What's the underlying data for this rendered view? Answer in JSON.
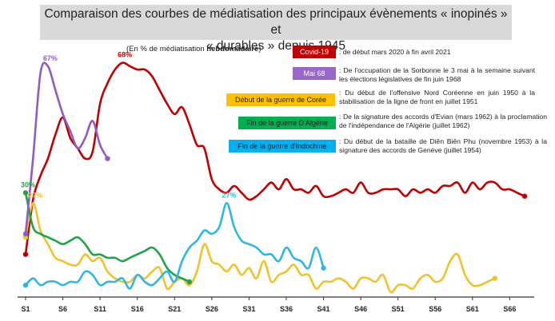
{
  "title_line1": "Comparaison des courbes de médiatisation des principaux évènements « inopinés » et",
  "title_line2": "« durables » depuis 1945",
  "subtitle_prefix": "(En % de médiatisation ",
  "subtitle_bold": "hebdomadaire",
  "subtitle_suffix": ")",
  "legend": [
    {
      "label": "Covid-19",
      "bg": "#c00000",
      "fg": "#ffffff",
      "color": "#c00000",
      "desc": ": de début mars 2020 à fin avril 2021"
    },
    {
      "label": "Mai 68",
      "bg": "#9966cc",
      "fg": "#ffffff",
      "color": "#8e5cc4",
      "desc": ": De l'occupation de la Sorbonne le 3 mai à la semaine suivant les élections législatives de fin juin 1968"
    },
    {
      "label": "Début de la guerre de Corée",
      "bg": "#ffc000",
      "fg": "#222222",
      "color": "#f2c12e",
      "desc": ": Du début de l'offensive Nord Coréenne en juin 1950 à la stabilisation de la ligne de front en juillet 1951"
    },
    {
      "label": "Fin de la guerre D'Algérie",
      "bg": "#00b050",
      "fg": "#222222",
      "color": "#21a34a",
      "desc": ": De la signature des accords d'Evian (mars 1962) à la proclamation de l'indépendance de l'Algérie (juillet 1962)"
    },
    {
      "label": "Fin de la guerre d'Indochine",
      "bg": "#00b0f0",
      "fg": "#222222",
      "color": "#2fb5e6",
      "desc": ": Du début de la bataille de Diên Biên Phu (novembre 1953) à la signature des accords de Genève (juillet 1954)"
    }
  ],
  "chart_data": {
    "type": "line",
    "title": "Comparaison des courbes de médiatisation des principaux évènements « inopinés » et « durables » depuis 1945",
    "subtitle": "(En % de médiatisation hebdomadaire)",
    "xlabel": "",
    "ylabel": "",
    "x_ticks": [
      "S1",
      "S6",
      "S11",
      "S16",
      "S21",
      "S26",
      "S31",
      "S36",
      "S41",
      "S46",
      "S51",
      "S56",
      "S61",
      "S66"
    ],
    "xlim": [
      1,
      68
    ],
    "ylim": [
      0,
      70
    ],
    "grid": false,
    "annotations": [
      {
        "text": "68%",
        "series": "Covid-19"
      },
      {
        "text": "67%",
        "series": "Mai 68"
      },
      {
        "text": "30%",
        "series": "Fin de la guerre D'Algérie"
      },
      {
        "text": "27%",
        "series": "Début de la guerre de Corée"
      },
      {
        "text": "27%",
        "series": "Fin de la guerre d'Indochine"
      }
    ],
    "series": [
      {
        "name": "Covid-19",
        "color": "#c00000",
        "x_start": 1,
        "values": [
          12,
          28,
          35,
          40,
          47,
          52,
          46,
          43,
          40,
          42,
          56,
          62,
          66,
          68,
          67,
          66,
          66,
          64,
          60,
          56,
          53,
          55,
          50,
          44,
          43,
          34,
          31,
          30,
          32,
          30,
          28,
          29,
          31,
          33,
          31,
          34,
          31,
          31,
          30,
          32,
          29,
          29,
          30,
          31,
          30,
          33,
          30,
          30,
          31,
          31,
          31,
          29,
          31,
          30,
          31,
          30,
          32,
          32,
          33,
          30,
          33,
          31,
          33,
          33,
          31,
          31,
          30,
          29
        ]
      },
      {
        "name": "Mai 68",
        "color": "#8e5cc4",
        "x_start": 1,
        "values": [
          18,
          40,
          65,
          67,
          60,
          53,
          48,
          43,
          46,
          51,
          44,
          40
        ]
      },
      {
        "name": "Début de la guerre de Corée",
        "color": "#f2c12e",
        "x_start": 1,
        "values": [
          17,
          27,
          19,
          15,
          11,
          10,
          9,
          9,
          12,
          10,
          11,
          7,
          5,
          4,
          4,
          6,
          5,
          7,
          8,
          2,
          4,
          5,
          3,
          7,
          15,
          10,
          9,
          7,
          9,
          6,
          8,
          5,
          10,
          4,
          6,
          7,
          9,
          6,
          6,
          2,
          4,
          4,
          5,
          4,
          2,
          5,
          5,
          4,
          6,
          1,
          3,
          3,
          2,
          5,
          6,
          4,
          5,
          10,
          12,
          6,
          3,
          3,
          4,
          5
        ]
      },
      {
        "name": "Fin de la guerre D'Algérie",
        "color": "#21a34a",
        "x_start": 1,
        "values": [
          30,
          20,
          18,
          17,
          16,
          15,
          16,
          17,
          15,
          12,
          12,
          11,
          11,
          10,
          11,
          12,
          13,
          14,
          12,
          8,
          6,
          5,
          4
        ]
      },
      {
        "name": "Fin de la guerre d'Indochine",
        "color": "#2fb5e6",
        "x_start": 1,
        "values": [
          3,
          5,
          3,
          4,
          4,
          3,
          4,
          4,
          7,
          6,
          3,
          4,
          4,
          5,
          2,
          6,
          4,
          3,
          5,
          7,
          4,
          10,
          14,
          16,
          19,
          18,
          20,
          27,
          20,
          16,
          15,
          14,
          12,
          12,
          10,
          14,
          11,
          10,
          8,
          14,
          8
        ]
      }
    ]
  }
}
